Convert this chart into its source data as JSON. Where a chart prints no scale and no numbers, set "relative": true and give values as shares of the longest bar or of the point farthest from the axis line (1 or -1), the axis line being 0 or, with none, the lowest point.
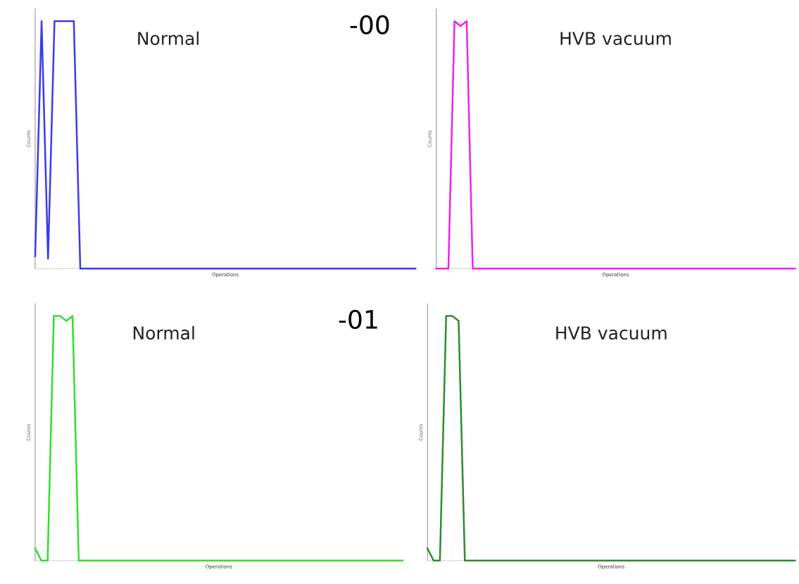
{
  "chart_data": [
    {
      "type": "line",
      "title": "Normal",
      "annotations": [
        "-00"
      ],
      "xlabel": "Operations",
      "ylabel": "Counts",
      "relative": true,
      "tick_labels": false,
      "categories": [
        null,
        null,
        null,
        null,
        null,
        null,
        null,
        null,
        null,
        null,
        null,
        null,
        null,
        null,
        null,
        null,
        null,
        null,
        null,
        null,
        null,
        null,
        null,
        null,
        null,
        null,
        null,
        null,
        null,
        null,
        null,
        null,
        null,
        null,
        null,
        null,
        null,
        null,
        null,
        null,
        null,
        null,
        null,
        null,
        null,
        null,
        null,
        null,
        null,
        null,
        null,
        null,
        null,
        null,
        null,
        null,
        null,
        null,
        null,
        null
      ],
      "series": [
        {
          "color": "#3a3aee",
          "values": [
            0.05,
            1,
            0.04,
            1,
            1,
            1,
            1,
            0,
            0,
            0,
            0,
            0,
            0,
            0,
            0,
            0,
            0,
            0,
            0,
            0,
            0,
            0,
            0,
            0,
            0,
            0,
            0,
            0,
            0,
            0,
            0,
            0,
            0,
            0,
            0,
            0,
            0,
            0,
            0,
            0,
            0,
            0,
            0,
            0,
            0,
            0,
            0,
            0,
            0,
            0,
            0,
            0,
            0,
            0,
            0,
            0,
            0,
            0,
            0,
            0
          ]
        }
      ]
    },
    {
      "type": "line",
      "title": "HVB vacuum",
      "xlabel": "Operations",
      "ylabel": "Counts",
      "relative": true,
      "tick_labels": false,
      "categories": [
        null,
        null,
        null,
        null,
        null,
        null,
        null,
        null,
        null,
        null,
        null,
        null,
        null,
        null,
        null,
        null,
        null,
        null,
        null,
        null,
        null,
        null,
        null,
        null,
        null,
        null,
        null,
        null,
        null,
        null,
        null,
        null,
        null,
        null,
        null,
        null,
        null,
        null,
        null,
        null,
        null,
        null,
        null,
        null,
        null,
        null,
        null,
        null,
        null,
        null,
        null,
        null,
        null,
        null,
        null,
        null,
        null,
        null,
        null,
        null
      ],
      "series": [
        {
          "color": "#ee22ee",
          "values": [
            0,
            0,
            0,
            1,
            0.98,
            1,
            0,
            0,
            0,
            0,
            0,
            0,
            0,
            0,
            0,
            0,
            0,
            0,
            0,
            0,
            0,
            0,
            0,
            0,
            0,
            0,
            0,
            0,
            0,
            0,
            0,
            0,
            0,
            0,
            0,
            0,
            0,
            0,
            0,
            0,
            0,
            0,
            0,
            0,
            0,
            0,
            0,
            0,
            0,
            0,
            0,
            0,
            0,
            0,
            0,
            0,
            0,
            0,
            0,
            0
          ]
        }
      ]
    },
    {
      "type": "line",
      "title": "Normal",
      "annotations": [
        "-01"
      ],
      "xlabel": "Operations",
      "ylabel": "Counts",
      "relative": true,
      "tick_labels": false,
      "categories": [
        null,
        null,
        null,
        null,
        null,
        null,
        null,
        null,
        null,
        null,
        null,
        null,
        null,
        null,
        null,
        null,
        null,
        null,
        null,
        null,
        null,
        null,
        null,
        null,
        null,
        null,
        null,
        null,
        null,
        null,
        null,
        null,
        null,
        null,
        null,
        null,
        null,
        null,
        null,
        null,
        null,
        null,
        null,
        null,
        null,
        null,
        null,
        null,
        null,
        null,
        null,
        null,
        null,
        null,
        null,
        null,
        null,
        null,
        null,
        null
      ],
      "series": [
        {
          "color": "#33dd33",
          "values": [
            0.05,
            0,
            0,
            1,
            1,
            0.98,
            1,
            0,
            0,
            0,
            0,
            0,
            0,
            0,
            0,
            0,
            0,
            0,
            0,
            0,
            0,
            0,
            0,
            0,
            0,
            0,
            0,
            0,
            0,
            0,
            0,
            0,
            0,
            0,
            0,
            0,
            0,
            0,
            0,
            0,
            0,
            0,
            0,
            0,
            0,
            0,
            0,
            0,
            0,
            0,
            0,
            0,
            0,
            0,
            0,
            0,
            0,
            0,
            0,
            0
          ]
        }
      ]
    },
    {
      "type": "line",
      "title": "HVB vacuum",
      "xlabel": "Operations",
      "ylabel": "Counts",
      "relative": true,
      "tick_labels": false,
      "categories": [
        null,
        null,
        null,
        null,
        null,
        null,
        null,
        null,
        null,
        null,
        null,
        null,
        null,
        null,
        null,
        null,
        null,
        null,
        null,
        null,
        null,
        null,
        null,
        null,
        null,
        null,
        null,
        null,
        null,
        null,
        null,
        null,
        null,
        null,
        null,
        null,
        null,
        null,
        null,
        null,
        null,
        null,
        null,
        null,
        null,
        null,
        null,
        null,
        null,
        null,
        null,
        null,
        null,
        null,
        null,
        null,
        null,
        null,
        null,
        null
      ],
      "series": [
        {
          "color": "#2e8b2e",
          "values": [
            0.05,
            0,
            0,
            1,
            1,
            0.98,
            0,
            0,
            0,
            0,
            0,
            0,
            0,
            0,
            0,
            0,
            0,
            0,
            0,
            0,
            0,
            0,
            0,
            0,
            0,
            0,
            0,
            0,
            0,
            0,
            0,
            0,
            0,
            0,
            0,
            0,
            0,
            0,
            0,
            0,
            0,
            0,
            0,
            0,
            0,
            0,
            0,
            0,
            0,
            0,
            0,
            0,
            0,
            0,
            0,
            0,
            0,
            0,
            0,
            0
          ]
        }
      ]
    }
  ]
}
